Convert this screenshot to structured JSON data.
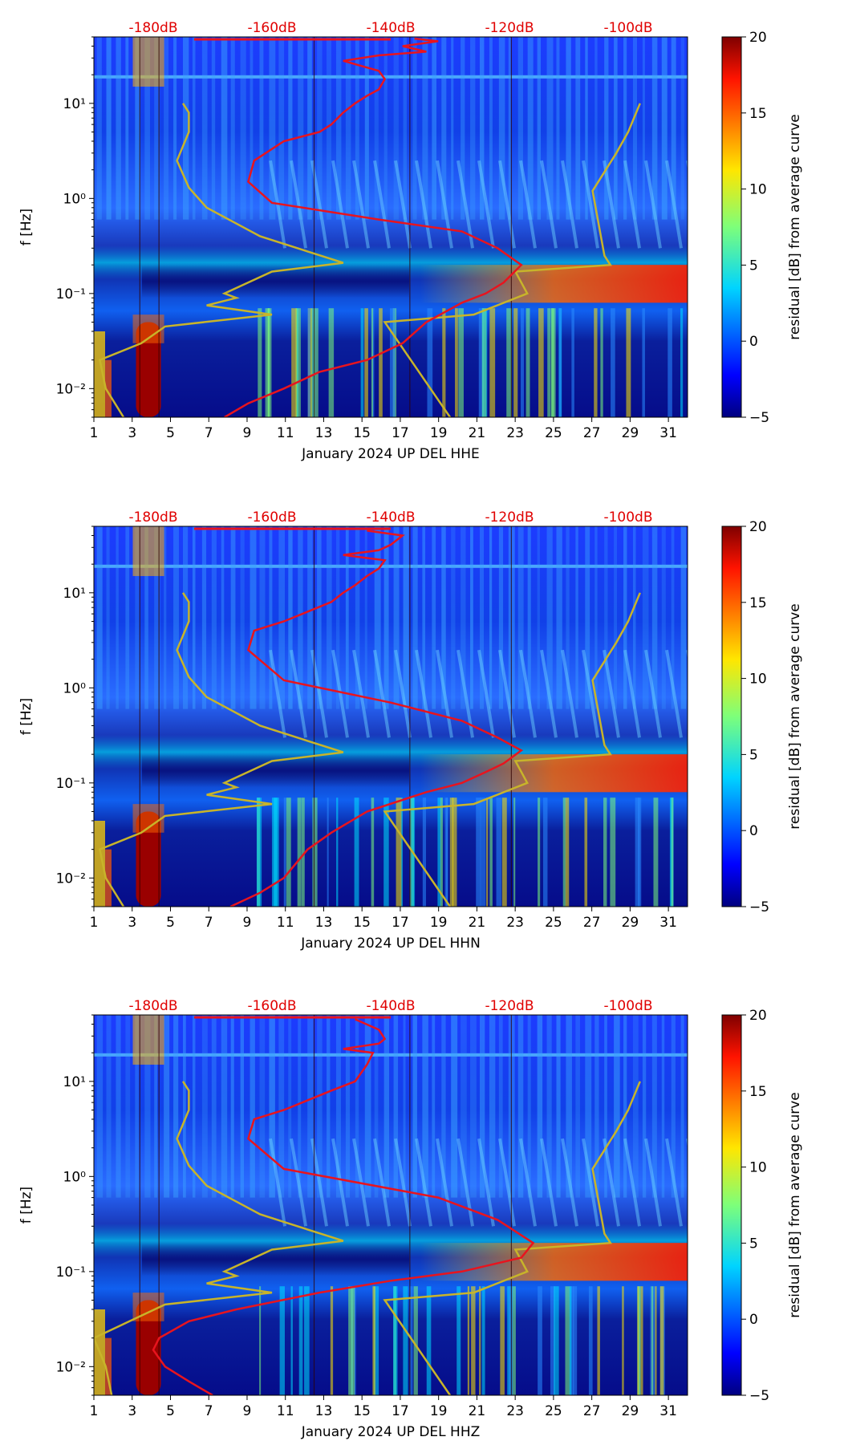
{
  "colorbar": {
    "label": "residual [dB] from average curve",
    "min": -5,
    "max": 20,
    "ticks": [
      "−5",
      "0",
      "5",
      "10",
      "15",
      "20"
    ]
  },
  "top_axis": {
    "labels": [
      "-180dB",
      "-160dB",
      "-140dB",
      "-120dB",
      "-100dB"
    ],
    "color": "#e00000"
  },
  "x_axis": {
    "ticks": [
      "1",
      "3",
      "5",
      "7",
      "9",
      "11",
      "13",
      "15",
      "17",
      "19",
      "21",
      "23",
      "25",
      "27",
      "29",
      "31"
    ]
  },
  "y_axis": {
    "label": "f [Hz]",
    "ticks": [
      "10⁻²",
      "10⁻¹",
      "10⁰",
      "10¹"
    ],
    "scale": "log",
    "range": [
      0.005,
      50
    ]
  },
  "chart_data": [
    {
      "type": "heatmap",
      "xlabel": "January 2024 UP DEL  HHE",
      "ylabel": "f [Hz]",
      "xlim": [
        1,
        32
      ],
      "ylim": [
        0.005,
        50
      ],
      "red_curve": {
        "x_dB": [
          -168,
          -164,
          -158,
          -152,
          -144,
          -138,
          -134,
          -128,
          -124,
          -121,
          -118,
          -122,
          -128,
          -142,
          -160,
          -164,
          -163,
          -158,
          -152,
          -150,
          -148,
          -146,
          -144,
          -142,
          -141,
          -142,
          -148,
          -142,
          -134,
          -138,
          -132,
          -136
        ],
        "f_Hz": [
          0.005,
          0.007,
          0.01,
          0.015,
          0.02,
          0.03,
          0.05,
          0.08,
          0.1,
          0.13,
          0.2,
          0.3,
          0.45,
          0.6,
          0.9,
          1.5,
          2.5,
          4,
          5,
          6,
          8,
          10,
          12,
          14,
          18,
          22,
          28,
          32,
          35,
          40,
          45,
          48
        ]
      },
      "yellow_curve": {
        "x_dB": [
          -185,
          -188,
          -189,
          -182,
          -178,
          -160,
          -171,
          -166,
          -168,
          -160,
          -148,
          -162,
          -171,
          -174,
          -176,
          -174,
          -174,
          -175
        ],
        "f_Hz": [
          0.005,
          0.01,
          0.02,
          0.03,
          0.045,
          0.06,
          0.075,
          0.09,
          0.1,
          0.17,
          0.21,
          0.4,
          0.8,
          1.3,
          2.5,
          5,
          8,
          10
        ]
      },
      "yellow_curve_right": {
        "x_dB": [
          -130,
          -141,
          -126,
          -117,
          -119,
          -103,
          -104,
          -106,
          -102,
          -100,
          -98
        ],
        "f_Hz": [
          0.005,
          0.05,
          0.06,
          0.1,
          0.17,
          0.2,
          0.25,
          1.2,
          3,
          5,
          10
        ]
      }
    },
    {
      "type": "heatmap",
      "xlabel": "January 2024 UP DEL  HHN",
      "ylabel": "f [Hz]",
      "xlim": [
        1,
        32
      ],
      "ylim": [
        0.005,
        50
      ],
      "red_curve": {
        "x_dB": [
          -167,
          -162,
          -158,
          -154,
          -150,
          -144,
          -134,
          -128,
          -124,
          -121,
          -118,
          -122,
          -128,
          -140,
          -158,
          -164,
          -163,
          -158,
          -150,
          -148,
          -146,
          -144,
          -142,
          -141,
          -148,
          -142,
          -140,
          -138,
          -144
        ],
        "f_Hz": [
          0.005,
          0.007,
          0.01,
          0.02,
          0.03,
          0.05,
          0.08,
          0.1,
          0.13,
          0.16,
          0.22,
          0.3,
          0.45,
          0.7,
          1.2,
          2.5,
          4,
          5,
          8,
          10,
          12,
          15,
          18,
          22,
          25,
          28,
          32,
          40,
          45
        ]
      },
      "yellow_curve": {
        "x_dB": [
          -185,
          -188,
          -189,
          -182,
          -178,
          -160,
          -171,
          -166,
          -168,
          -160,
          -148,
          -162,
          -171,
          -174,
          -176,
          -174,
          -174,
          -175
        ],
        "f_Hz": [
          0.005,
          0.01,
          0.02,
          0.03,
          0.045,
          0.06,
          0.075,
          0.09,
          0.1,
          0.17,
          0.21,
          0.4,
          0.8,
          1.3,
          2.5,
          5,
          8,
          10
        ]
      },
      "yellow_curve_right": {
        "x_dB": [
          -130,
          -141,
          -126,
          -117,
          -119,
          -103,
          -104,
          -106,
          -102,
          -100,
          -98
        ],
        "f_Hz": [
          0.005,
          0.05,
          0.06,
          0.1,
          0.17,
          0.2,
          0.25,
          1.2,
          3,
          5,
          10
        ]
      }
    },
    {
      "type": "heatmap",
      "xlabel": "January 2024 UP DEL  HHZ",
      "ylabel": "f [Hz]",
      "xlim": [
        1,
        32
      ],
      "ylim": [
        0.005,
        50
      ],
      "red_curve": {
        "x_dB": [
          -170,
          -174,
          -178,
          -180,
          -179,
          -174,
          -166,
          -152,
          -140,
          -128,
          -118,
          -116,
          -122,
          -132,
          -158,
          -164,
          -163,
          -158,
          -150,
          -146,
          -144,
          -143,
          -148,
          -142,
          -141,
          -142,
          -146
        ],
        "f_Hz": [
          0.005,
          0.007,
          0.01,
          0.015,
          0.02,
          0.03,
          0.04,
          0.06,
          0.08,
          0.1,
          0.14,
          0.2,
          0.35,
          0.6,
          1.2,
          2.5,
          4,
          5,
          8,
          10,
          15,
          20,
          22,
          25,
          28,
          35,
          45
        ]
      },
      "yellow_curve": {
        "x_dB": [
          -187,
          -188,
          -190,
          -184,
          -178,
          -160,
          -171,
          -166,
          -168,
          -160,
          -148,
          -162,
          -171,
          -174,
          -176,
          -174,
          -174,
          -175
        ],
        "f_Hz": [
          0.005,
          0.01,
          0.02,
          0.03,
          0.045,
          0.06,
          0.075,
          0.09,
          0.1,
          0.17,
          0.21,
          0.4,
          0.8,
          1.3,
          2.5,
          5,
          8,
          10
        ]
      },
      "yellow_curve_right": {
        "x_dB": [
          -130,
          -141,
          -126,
          -117,
          -119,
          -103,
          -104,
          -106,
          -102,
          -100,
          -98
        ],
        "f_Hz": [
          0.005,
          0.05,
          0.06,
          0.1,
          0.17,
          0.2,
          0.25,
          1.2,
          3,
          5,
          10
        ]
      }
    }
  ]
}
